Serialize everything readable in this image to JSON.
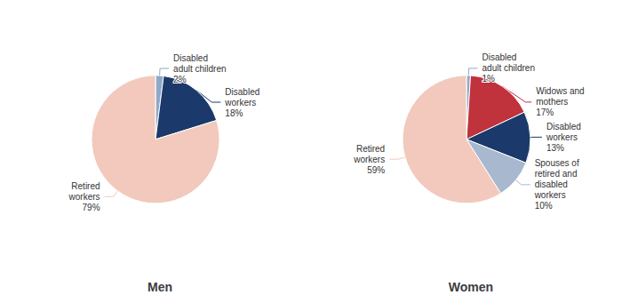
{
  "chart_data": [
    {
      "type": "pie",
      "title": "Men",
      "categories": [
        "Disabled\nadult children",
        "Disabled\nworkers",
        "Retired\nworkers"
      ],
      "values": [
        2,
        18,
        79
      ],
      "value_labels": [
        "2%",
        "18%",
        "79%"
      ],
      "colors": [
        "#8FA8C8",
        "#1B3A6B",
        "#F2C9BC"
      ],
      "data_labels": true
    },
    {
      "type": "pie",
      "title": "Women",
      "categories": [
        "Disabled\nadult children",
        "Widows and\nmothers",
        "Disabled\nworkers",
        "Spouses of\nretired and\ndisabled\nworkers",
        "Retired\nworkers"
      ],
      "values": [
        1,
        17,
        13,
        10,
        59
      ],
      "value_labels": [
        "1%",
        "17%",
        "13%",
        "10%",
        "59%"
      ],
      "colors": [
        "#8FA8C8",
        "#C0323C",
        "#1B3A6B",
        "#A8B8CE",
        "#F2C9BC"
      ],
      "data_labels": true
    }
  ]
}
